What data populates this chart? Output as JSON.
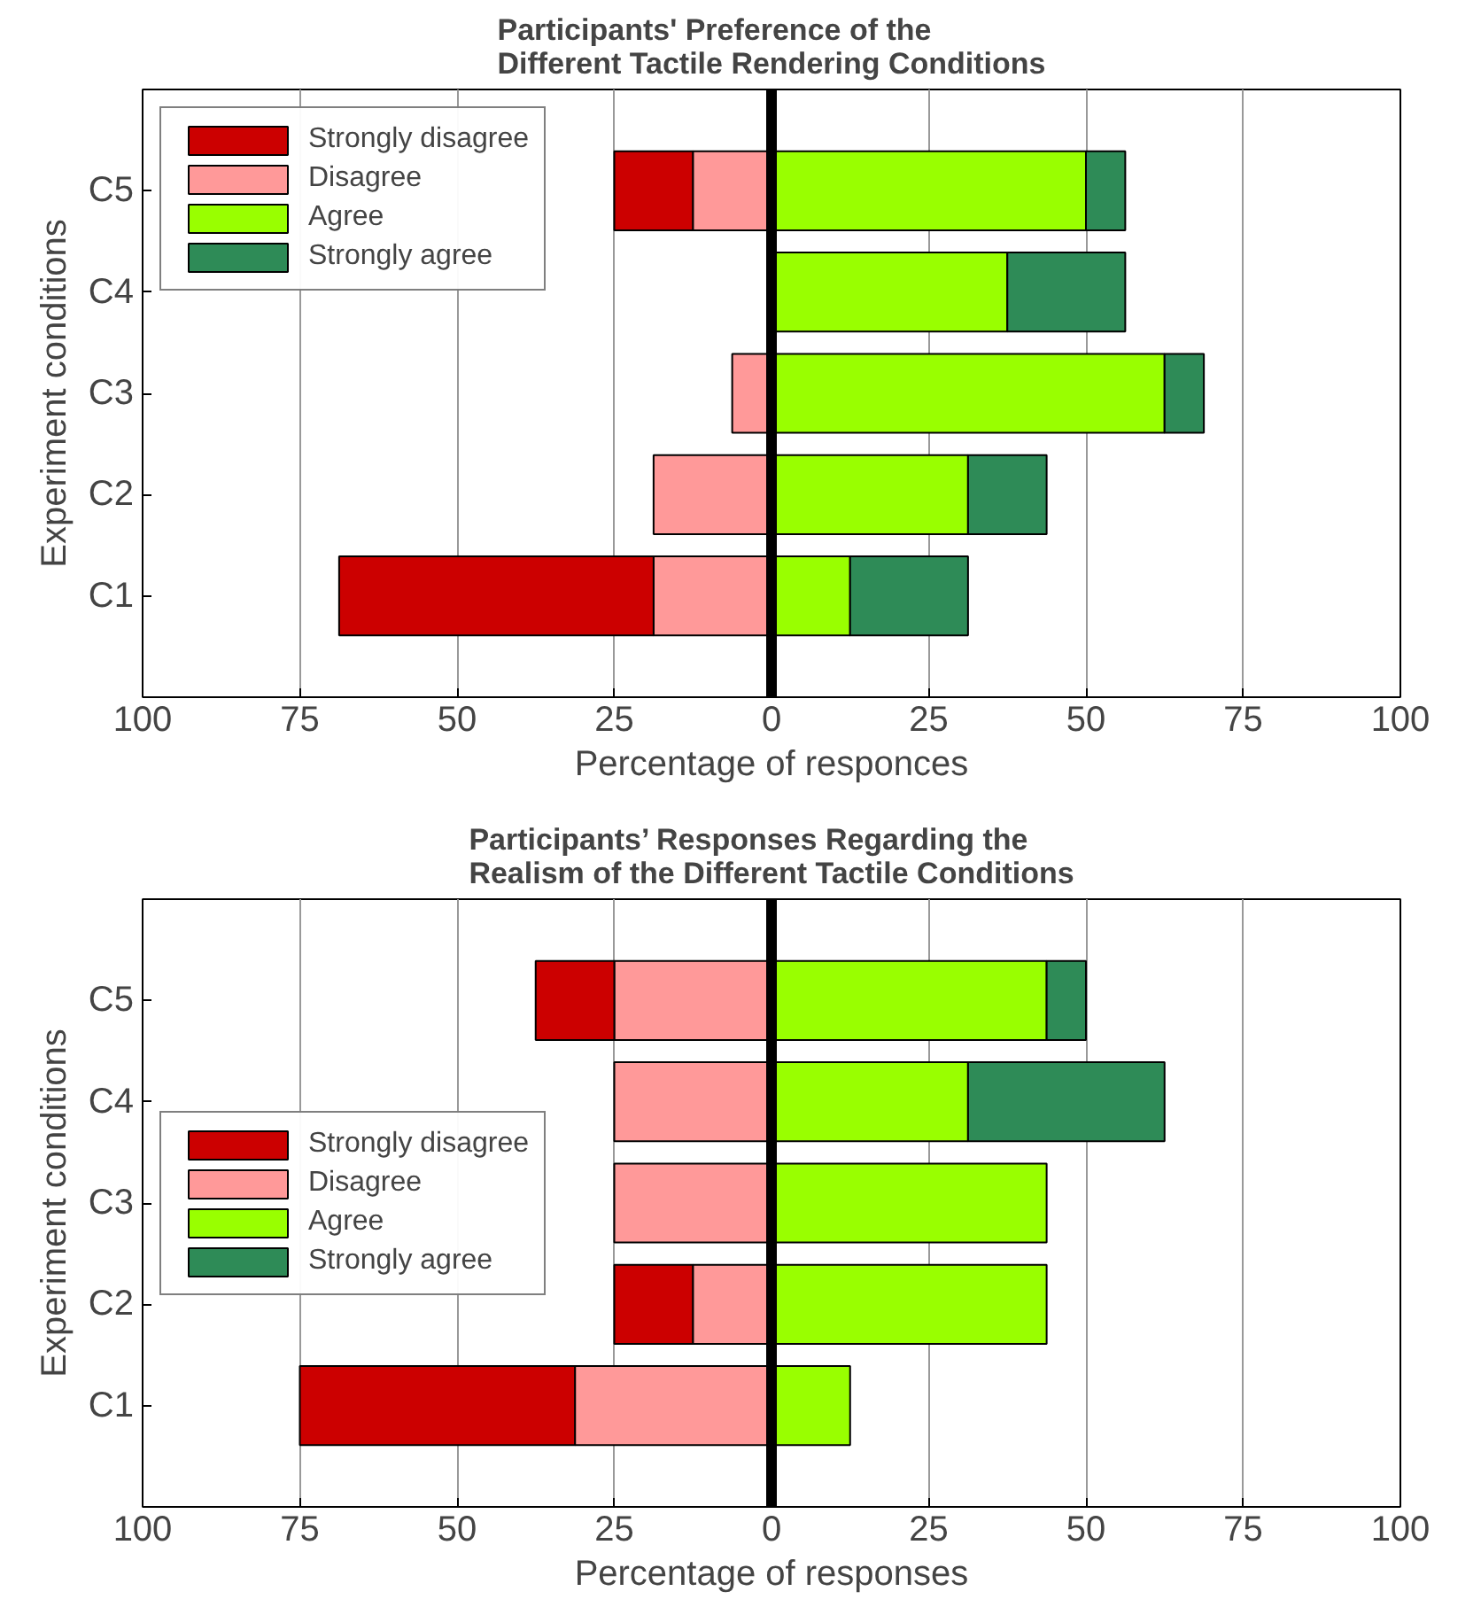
{
  "chart_data": [
    {
      "type": "bar",
      "orientation": "horizontal",
      "stacked": true,
      "title": "Participants' Preference of the\nDifferent Tactile Rendering Conditions",
      "xlabel": "Percentage of responces",
      "ylabel": "Experiment conditions",
      "categories": [
        "C5",
        "C4",
        "C3",
        "C2",
        "C1"
      ],
      "series": [
        {
          "name": "Disagree",
          "color": "#ff9999",
          "values": [
            -12.5,
            0,
            -6.25,
            -18.75,
            -18.75
          ]
        },
        {
          "name": "Strongly disagree",
          "color": "#cc0000",
          "values": [
            -12.5,
            0,
            0,
            0,
            -50
          ]
        },
        {
          "name": "Agree",
          "color": "#99ff00",
          "values": [
            50,
            37.5,
            62.5,
            31.25,
            12.5
          ]
        },
        {
          "name": "Strongly agree",
          "color": "#2e8b57",
          "values": [
            6.25,
            18.75,
            6.25,
            12.5,
            18.75
          ]
        }
      ],
      "xlim": [
        -100,
        100
      ],
      "xticks": [
        {
          "value": -100,
          "label": "100"
        },
        {
          "value": -75,
          "label": "75"
        },
        {
          "value": -50,
          "label": "50"
        },
        {
          "value": -25,
          "label": "25"
        },
        0,
        25,
        50,
        75,
        100
      ],
      "ref_lines": [
        {
          "axis": "x",
          "value": 0,
          "color": "#000000"
        }
      ],
      "grid": "x",
      "legend": "top left"
    },
    {
      "type": "bar",
      "orientation": "horizontal",
      "stacked": true,
      "title": "Participants’ Responses Regarding the\nRealism of the Different Tactile Conditions",
      "xlabel": "Percentage of responses",
      "ylabel": "Experiment conditions",
      "categories": [
        "C5",
        "C4",
        "C3",
        "C2",
        "C1"
      ],
      "series": [
        {
          "name": "Disagree",
          "color": "#ff9999",
          "values": [
            -25,
            -25,
            -25,
            -12.5,
            -31.25
          ]
        },
        {
          "name": "Strongly disagree",
          "color": "#cc0000",
          "values": [
            -12.5,
            0,
            0,
            -12.5,
            -43.75
          ]
        },
        {
          "name": "Agree",
          "color": "#99ff00",
          "values": [
            43.75,
            31.25,
            43.75,
            43.75,
            12.5
          ]
        },
        {
          "name": "Strongly agree",
          "color": "#2e8b57",
          "values": [
            6.25,
            31.25,
            0,
            0,
            0
          ]
        }
      ],
      "xlim": [
        -100,
        100
      ],
      "xticks": [
        {
          "value": -100,
          "label": "100"
        },
        {
          "value": -75,
          "label": "75"
        },
        {
          "value": -50,
          "label": "50"
        },
        {
          "value": -25,
          "label": "25"
        },
        0,
        25,
        50,
        75,
        100
      ],
      "ref_lines": [
        {
          "axis": "x",
          "value": 0,
          "color": "#000000"
        }
      ],
      "grid": "x",
      "legend": "left"
    }
  ]
}
